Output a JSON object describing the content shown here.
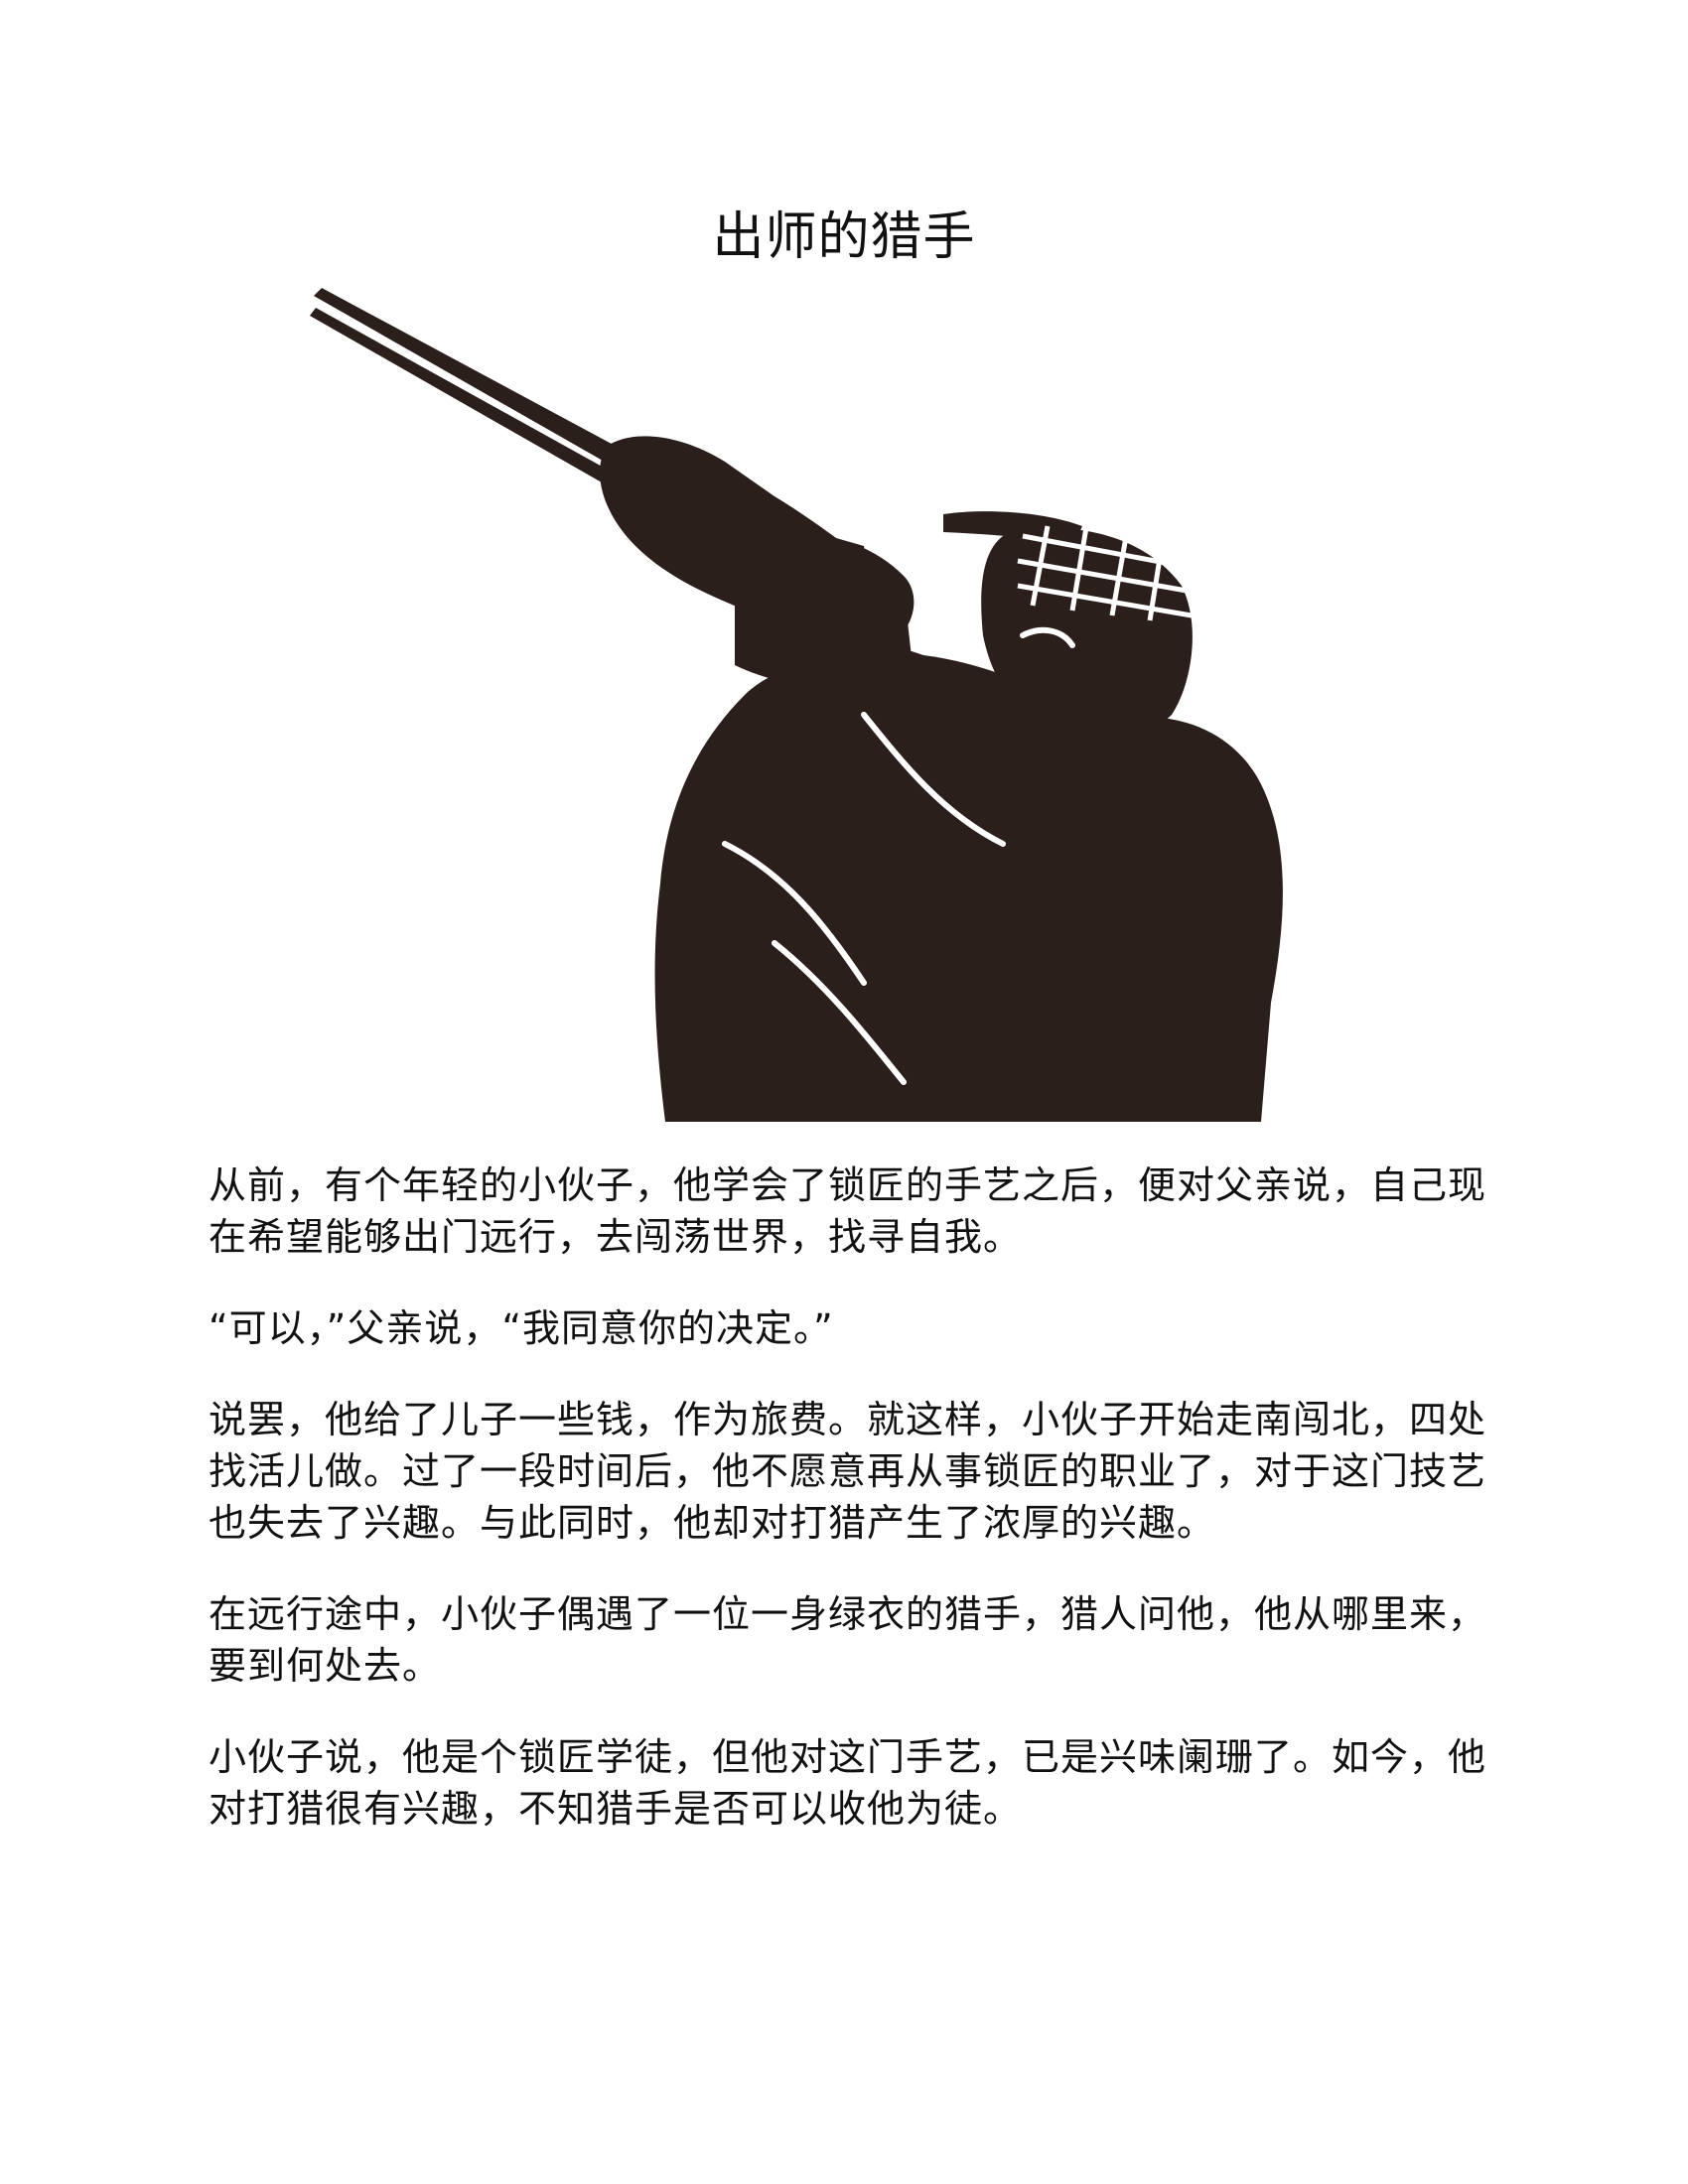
{
  "story": {
    "title": "出师的猎手",
    "paragraphs": [
      "从前，有个年轻的小伙子，他学会了锁匠的手艺之后，便对父亲说，自己现在希望能够出门远行，去闯荡世界，找寻自我。",
      "“可以，”父亲说，“我同意你的决定。”",
      "说罢，他给了儿子一些钱，作为旅费。就这样，小伙子开始走南闯北，四处找活儿做。过了一段时间后，他不愿意再从事锁匠的职业了，对于这门技艺也失去了兴趣。与此同时，他却对打猎产生了浓厚的兴趣。",
      "在远行途中，小伙子偶遇了一位一身绿衣的猎手，猎人问他，他从哪里来，要到何处去。",
      "小伙子说，他是个锁匠学徒，但他对这门手艺，已是兴味阑珊了。如今，他对打猎很有兴趣，不知猎手是否可以收他为徒。"
    ]
  },
  "illustration": {
    "icon": "hunter-aiming-rifle-icon",
    "fill_color": "#2b1f1c"
  }
}
